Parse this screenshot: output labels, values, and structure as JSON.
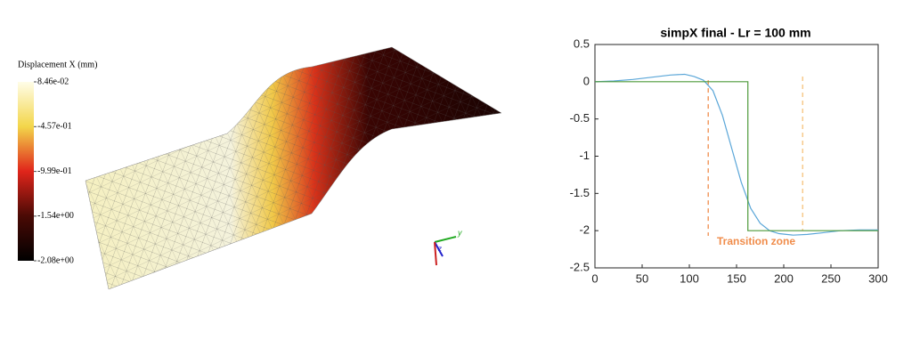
{
  "colorbar": {
    "title": "Displacement X (mm)",
    "lim": [
      -2.08,
      0.0846
    ],
    "ticks": [
      {
        "value": 0.0846,
        "label": "8.46e-02"
      },
      {
        "value": -0.457,
        "label": "-4.57e-01"
      },
      {
        "value": -0.999,
        "label": "-9.99e-01"
      },
      {
        "value": -1.54,
        "label": "-1.54e+00"
      },
      {
        "value": -2.08,
        "label": "-2.08e+00"
      }
    ]
  },
  "triad": {
    "labels": [
      "y",
      "z"
    ]
  },
  "chart_data": [
    {
      "type": "line",
      "title": "simpX final - Lr = 100 mm",
      "series": [
        {
          "color": "#5aa6d8",
          "x": [
            0,
            20,
            40,
            60,
            80,
            95,
            105,
            115,
            125,
            135,
            145,
            155,
            165,
            175,
            185,
            195,
            210,
            225,
            240,
            260,
            280,
            300
          ],
          "values": [
            0,
            0.01,
            0.03,
            0.06,
            0.09,
            0.1,
            0.07,
            0.02,
            -0.12,
            -0.45,
            -0.9,
            -1.35,
            -1.7,
            -1.9,
            -2.0,
            -2.04,
            -2.06,
            -2.05,
            -2.03,
            -2.0,
            -1.99,
            -1.99
          ]
        },
        {
          "color": "#4e9a3a",
          "x": [
            0,
            162,
            162,
            300
          ],
          "values": [
            0,
            0,
            -2,
            -2
          ]
        }
      ],
      "vlines": [
        {
          "x": 120,
          "y": [
            0.02,
            -2.07
          ],
          "color": "#f08c4a"
        },
        {
          "x": 220,
          "y": [
            0.07,
            -2.0
          ],
          "color": "#f7c27a"
        }
      ],
      "annotation": "Transition zone",
      "xlim": [
        0,
        300
      ],
      "ylim": [
        -2.5,
        0.5
      ],
      "xticks": [
        0,
        50,
        100,
        150,
        200,
        250,
        300
      ],
      "yticks": [
        0.5,
        0,
        -0.5,
        -1,
        -1.5,
        -2,
        -2.5
      ]
    }
  ]
}
